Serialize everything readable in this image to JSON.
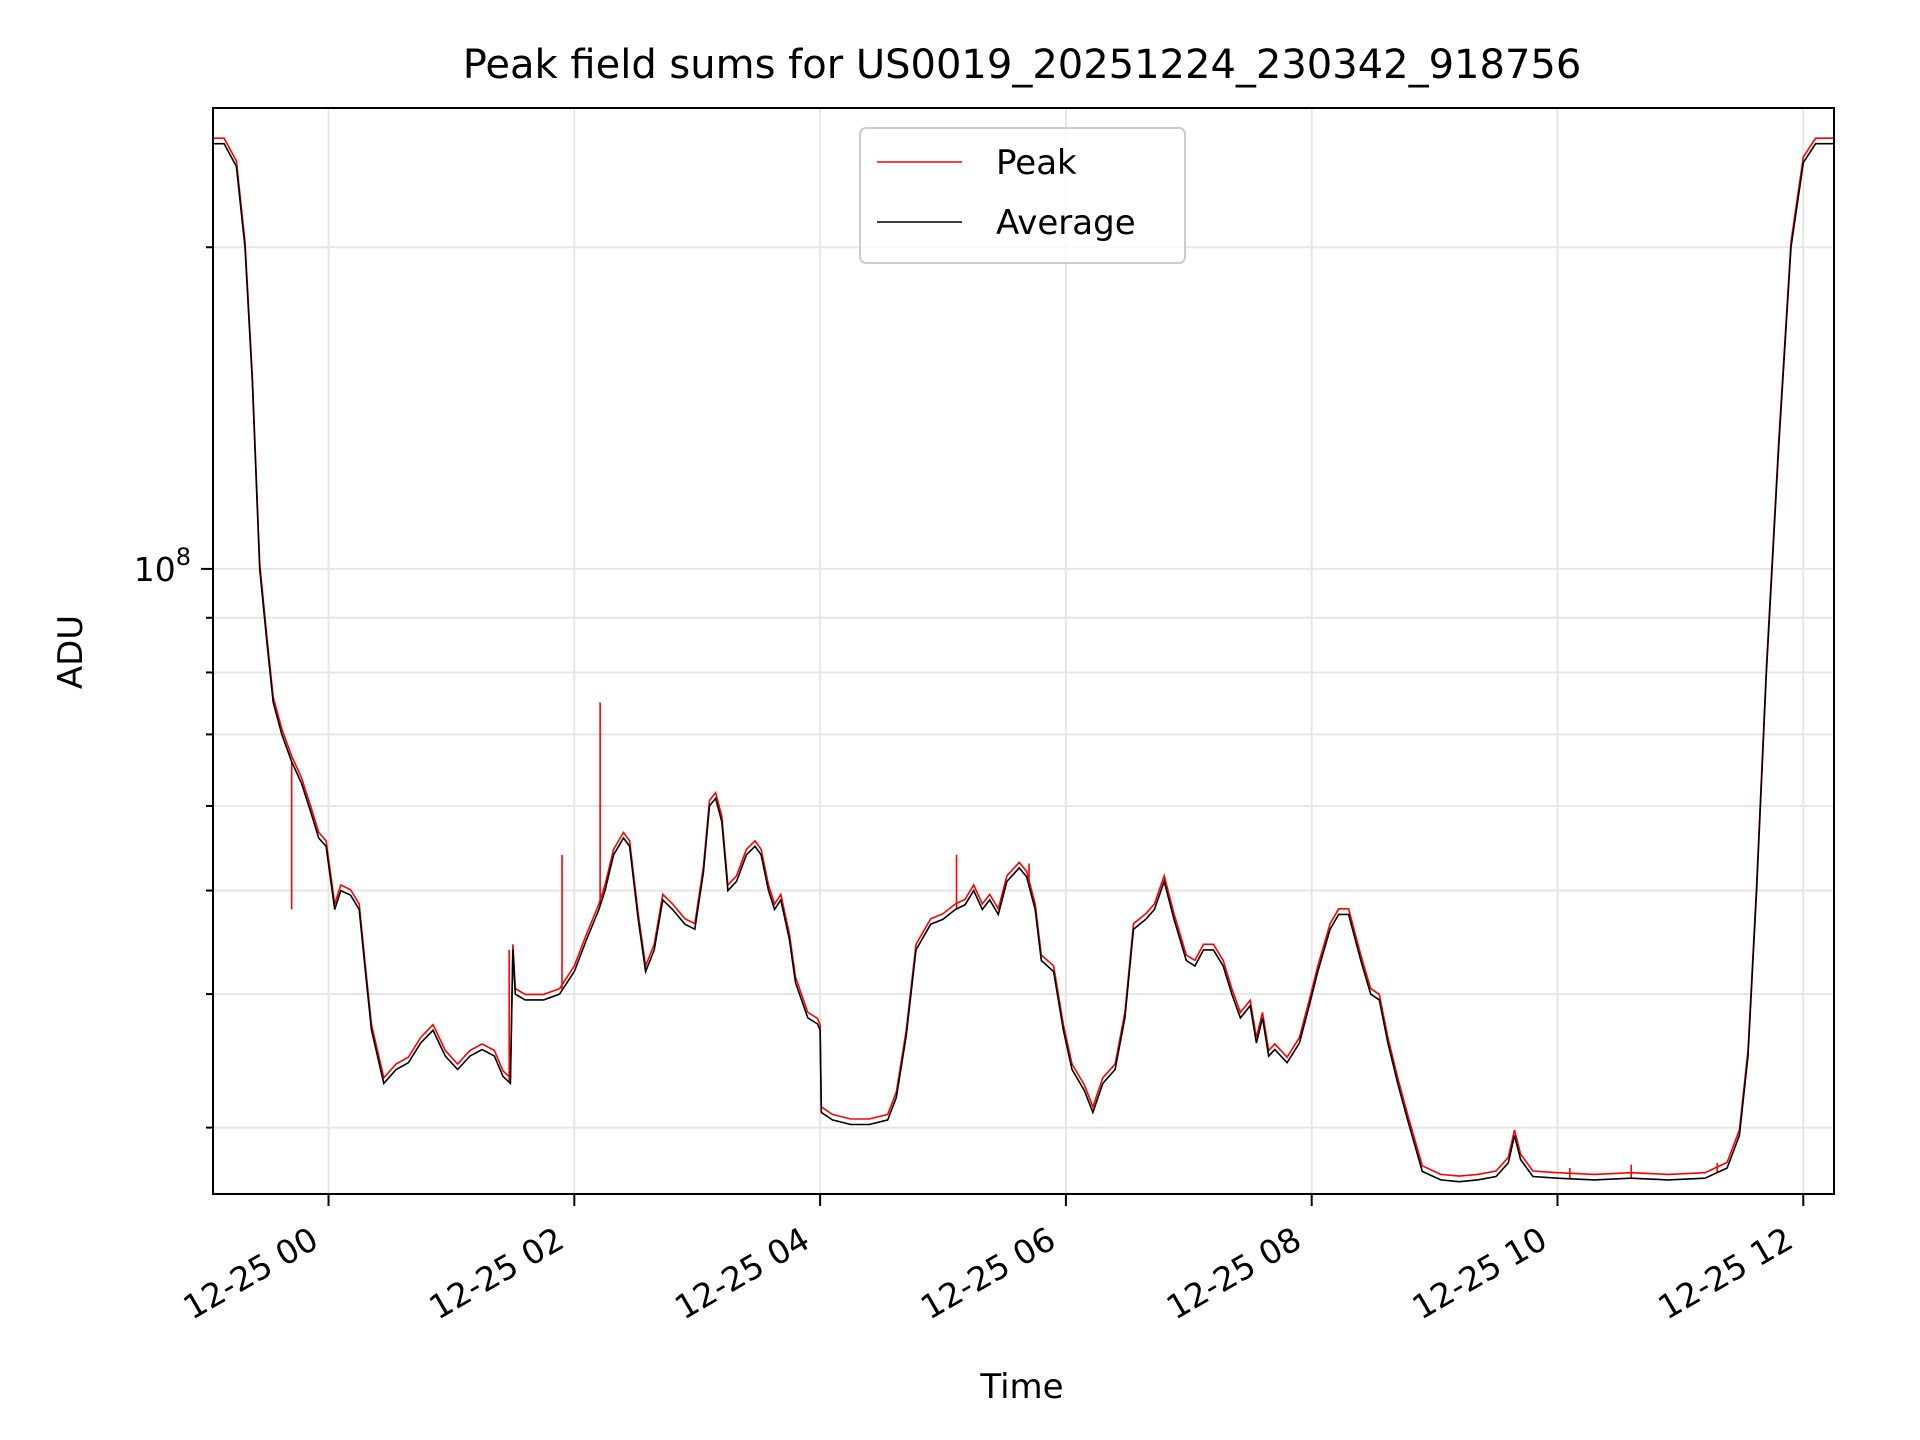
{
  "chart_data": {
    "type": "line",
    "title": "Peak field sums for US0019_20251224_230342_918756",
    "xlabel": "Time",
    "ylabel": "ADU",
    "y_scale": "log",
    "ylim": [
      26000000,
      270000000
    ],
    "xlim_hours": [
      -0.94,
      12.25
    ],
    "x_tick_labels": [
      "12-25 00",
      "12-25 02",
      "12-25 04",
      "12-25 06",
      "12-25 08",
      "12-25 10",
      "12-25 12"
    ],
    "x_tick_hours": [
      0,
      2,
      4,
      6,
      8,
      10,
      12
    ],
    "y_major_ticks": [
      {
        "value": 100000000,
        "base": "10",
        "exp": "8"
      }
    ],
    "y_minor_ticks": [
      30000000,
      40000000,
      50000000,
      60000000,
      70000000,
      80000000,
      90000000,
      200000000
    ],
    "grid": true,
    "legend_placement": "upper-center",
    "series": [
      {
        "name": "Peak",
        "color": "#ff0000",
        "spikes": [
          {
            "hour": -0.3,
            "value": 48000000
          },
          {
            "hour": 1.47,
            "value": 44000000
          },
          {
            "hour": 1.9,
            "value": 54000000
          },
          {
            "hour": 2.21,
            "value": 75000000
          },
          {
            "hour": 5.11,
            "value": 54000000
          },
          {
            "hour": 5.7,
            "value": 53000000
          },
          {
            "hour": 10.1,
            "value": 27500000
          },
          {
            "hour": 10.6,
            "value": 27700000
          },
          {
            "hour": 11.3,
            "value": 27800000
          }
        ]
      },
      {
        "name": "Average",
        "color": "#000000",
        "points": [
          [
            -0.94,
            250000000
          ],
          [
            -0.85,
            250000000
          ],
          [
            -0.75,
            238000000
          ],
          [
            -0.68,
            200000000
          ],
          [
            -0.62,
            150000000
          ],
          [
            -0.56,
            100000000
          ],
          [
            -0.5,
            85000000
          ],
          [
            -0.45,
            75000000
          ],
          [
            -0.38,
            70000000
          ],
          [
            -0.3,
            66000000
          ],
          [
            -0.22,
            63000000
          ],
          [
            -0.14,
            59000000
          ],
          [
            -0.08,
            56000000
          ],
          [
            -0.02,
            55000000
          ],
          [
            0.05,
            48000000
          ],
          [
            0.1,
            50000000
          ],
          [
            0.18,
            49500000
          ],
          [
            0.25,
            48000000
          ],
          [
            0.3,
            42000000
          ],
          [
            0.35,
            37000000
          ],
          [
            0.45,
            33000000
          ],
          [
            0.55,
            34000000
          ],
          [
            0.65,
            34500000
          ],
          [
            0.75,
            36000000
          ],
          [
            0.85,
            37000000
          ],
          [
            0.95,
            35000000
          ],
          [
            1.05,
            34000000
          ],
          [
            1.15,
            35000000
          ],
          [
            1.25,
            35500000
          ],
          [
            1.35,
            35000000
          ],
          [
            1.42,
            33500000
          ],
          [
            1.48,
            33000000
          ],
          [
            1.5,
            44000000
          ],
          [
            1.52,
            40000000
          ],
          [
            1.6,
            39500000
          ],
          [
            1.75,
            39500000
          ],
          [
            1.88,
            40000000
          ],
          [
            2.0,
            42000000
          ],
          [
            2.1,
            45000000
          ],
          [
            2.2,
            48000000
          ],
          [
            2.25,
            50000000
          ],
          [
            2.32,
            54000000
          ],
          [
            2.4,
            56000000
          ],
          [
            2.45,
            55000000
          ],
          [
            2.52,
            47000000
          ],
          [
            2.58,
            42000000
          ],
          [
            2.65,
            44000000
          ],
          [
            2.72,
            49000000
          ],
          [
            2.8,
            48000000
          ],
          [
            2.9,
            46500000
          ],
          [
            2.98,
            46000000
          ],
          [
            3.05,
            52000000
          ],
          [
            3.1,
            60000000
          ],
          [
            3.15,
            61000000
          ],
          [
            3.2,
            58000000
          ],
          [
            3.25,
            50000000
          ],
          [
            3.32,
            51000000
          ],
          [
            3.4,
            54000000
          ],
          [
            3.47,
            55000000
          ],
          [
            3.52,
            54000000
          ],
          [
            3.58,
            50000000
          ],
          [
            3.63,
            48000000
          ],
          [
            3.68,
            49000000
          ],
          [
            3.75,
            45000000
          ],
          [
            3.8,
            41000000
          ],
          [
            3.9,
            38000000
          ],
          [
            3.98,
            37500000
          ],
          [
            4.0,
            37000000
          ],
          [
            4.01,
            31000000
          ],
          [
            4.1,
            30500000
          ],
          [
            4.25,
            30200000
          ],
          [
            4.4,
            30200000
          ],
          [
            4.55,
            30500000
          ],
          [
            4.62,
            32000000
          ],
          [
            4.7,
            36500000
          ],
          [
            4.78,
            44000000
          ],
          [
            4.9,
            46500000
          ],
          [
            5.0,
            47000000
          ],
          [
            5.1,
            48000000
          ],
          [
            5.18,
            48500000
          ],
          [
            5.25,
            50000000
          ],
          [
            5.32,
            48000000
          ],
          [
            5.38,
            49000000
          ],
          [
            5.45,
            47500000
          ],
          [
            5.52,
            51000000
          ],
          [
            5.62,
            52500000
          ],
          [
            5.68,
            51500000
          ],
          [
            5.75,
            48000000
          ],
          [
            5.8,
            43000000
          ],
          [
            5.9,
            42000000
          ],
          [
            5.98,
            37000000
          ],
          [
            6.05,
            34000000
          ],
          [
            6.15,
            32500000
          ],
          [
            6.22,
            31000000
          ],
          [
            6.3,
            33000000
          ],
          [
            6.4,
            34000000
          ],
          [
            6.48,
            38000000
          ],
          [
            6.55,
            46000000
          ],
          [
            6.65,
            47000000
          ],
          [
            6.72,
            48000000
          ],
          [
            6.8,
            51000000
          ],
          [
            6.88,
            47000000
          ],
          [
            6.98,
            43000000
          ],
          [
            7.05,
            42500000
          ],
          [
            7.12,
            44000000
          ],
          [
            7.2,
            44000000
          ],
          [
            7.28,
            42500000
          ],
          [
            7.35,
            40000000
          ],
          [
            7.42,
            38000000
          ],
          [
            7.5,
            39000000
          ],
          [
            7.55,
            36000000
          ],
          [
            7.6,
            38000000
          ],
          [
            7.65,
            35000000
          ],
          [
            7.7,
            35500000
          ],
          [
            7.8,
            34500000
          ],
          [
            7.9,
            36000000
          ],
          [
            7.98,
            39000000
          ],
          [
            8.05,
            42000000
          ],
          [
            8.15,
            46000000
          ],
          [
            8.22,
            47500000
          ],
          [
            8.3,
            47500000
          ],
          [
            8.4,
            43000000
          ],
          [
            8.48,
            40000000
          ],
          [
            8.55,
            39500000
          ],
          [
            8.62,
            36000000
          ],
          [
            8.7,
            33000000
          ],
          [
            8.78,
            30500000
          ],
          [
            8.9,
            27300000
          ],
          [
            9.05,
            26800000
          ],
          [
            9.2,
            26700000
          ],
          [
            9.35,
            26800000
          ],
          [
            9.5,
            27000000
          ],
          [
            9.6,
            27800000
          ],
          [
            9.65,
            29500000
          ],
          [
            9.7,
            28000000
          ],
          [
            9.8,
            27000000
          ],
          [
            10.0,
            26900000
          ],
          [
            10.3,
            26800000
          ],
          [
            10.6,
            26900000
          ],
          [
            10.9,
            26800000
          ],
          [
            11.2,
            26900000
          ],
          [
            11.38,
            27500000
          ],
          [
            11.48,
            29500000
          ],
          [
            11.55,
            35000000
          ],
          [
            11.62,
            50000000
          ],
          [
            11.7,
            80000000
          ],
          [
            11.8,
            130000000
          ],
          [
            11.9,
            200000000
          ],
          [
            12.0,
            240000000
          ],
          [
            12.1,
            250000000
          ],
          [
            12.25,
            250000000
          ]
        ]
      }
    ]
  }
}
